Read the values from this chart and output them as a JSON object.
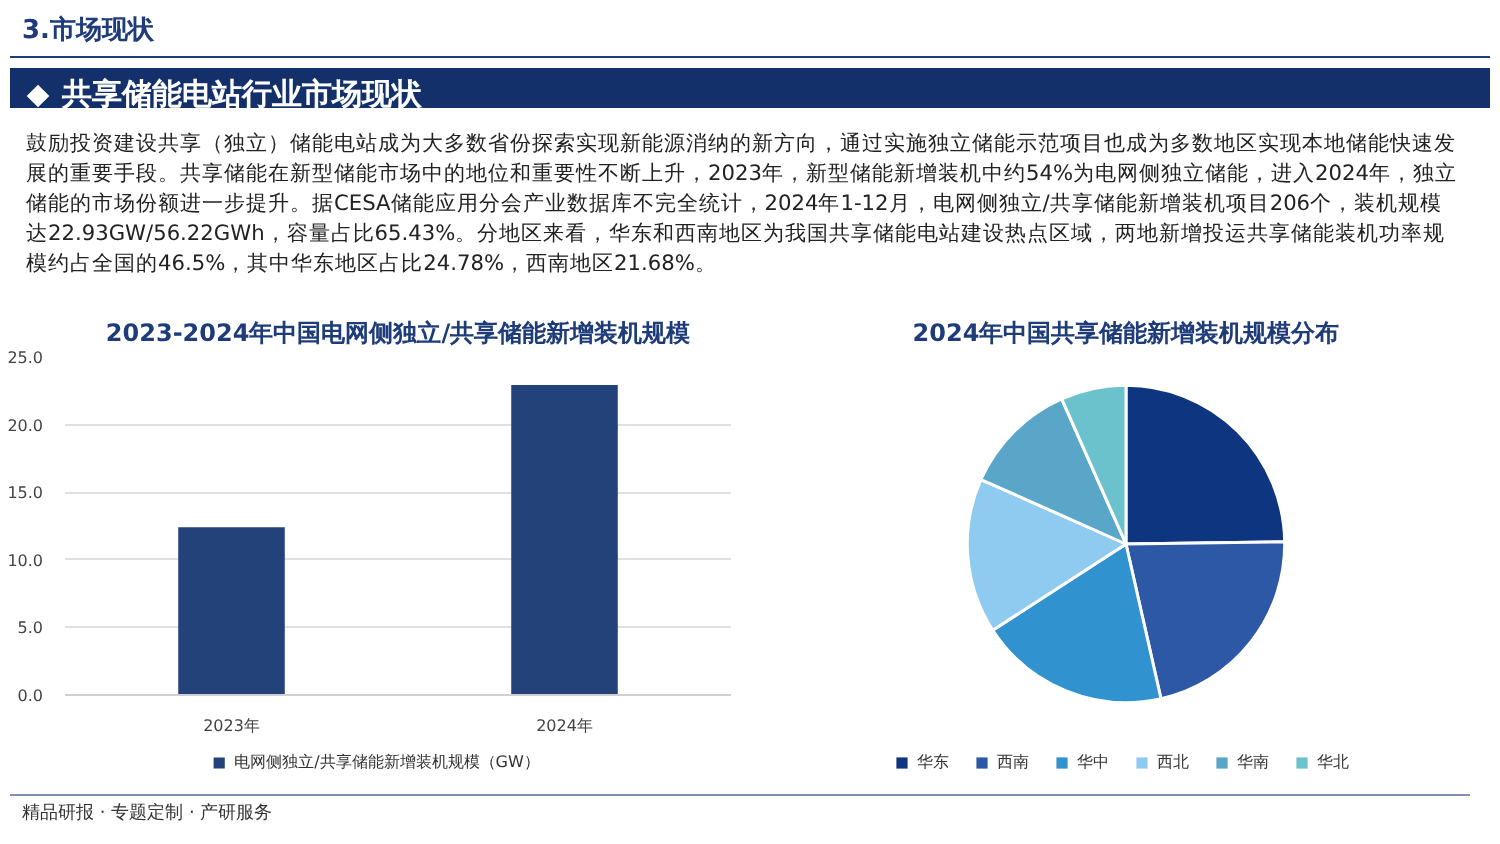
{
  "chart_data": [
    {
      "type": "bar",
      "title": "2023-2024年中国电网侧独立/共享储能新增装机规模",
      "categories": [
        "2023年",
        "2024年"
      ],
      "series": [
        {
          "name": "电网侧独立/共享储能新增装机规模（GW）",
          "color": "#23427a",
          "values": [
            12.4,
            22.93
          ]
        }
      ],
      "ylim": [
        0,
        25
      ],
      "yticks": [
        {
          "value": 0,
          "label": "0.0"
        },
        {
          "value": 5,
          "label": "5.0"
        },
        {
          "value": 10,
          "label": "10.0"
        },
        {
          "value": 15,
          "label": "15.0"
        },
        {
          "value": 20,
          "label": "20.0"
        },
        {
          "value": 25,
          "label": "25.0"
        }
      ],
      "grid": "y",
      "legend": "bottom",
      "annotations": [
        "3.市场现状",
        "共享储能电站行业市场现状",
        "鼓励投资建设共享（独立）储能电站成为大多数省份探索实现新能源消纳的新方向，通过实施独立储能示范项目也成为多数地区实现本地储能快速发展的重要手段。共享储能在新型储能市场中的地位和重要性不断上升，2023年，新型储能新增装机中约54%为电网侧独立储能，进入2024年，独立储能的市场份额进一步提升。据CESA储能应用分会产业数据库不完全统计，2024年1-12月，电网侧独立/共享储能新增装机项目206个，装机规模达22.93GW/56.22GWh，容量占比65.43%。分地区来看，华东和西南地区为我国共享储能电站建设热点区域，两地新增投运共享储能装机功率规模约占全国的46.5%，其中华东地区占比24.78%，西南地区21.68%。",
        "精品研报 · 专题定制 · 产研服务"
      ]
    },
    {
      "type": "pie",
      "title": "2024年中国共享储能新增装机规模分布",
      "categories": [
        "华东",
        "西南",
        "华中",
        "西北",
        "华南",
        "华北"
      ],
      "values": [
        24.78,
        21.68,
        19.4,
        15.8,
        11.7,
        6.64
      ],
      "colors": [
        "#0e3580",
        "#2d58a6",
        "#3192d0",
        "#8fcbf0",
        "#59a6c8",
        "#6cc2cc"
      ],
      "legend": "bottom"
    }
  ]
}
